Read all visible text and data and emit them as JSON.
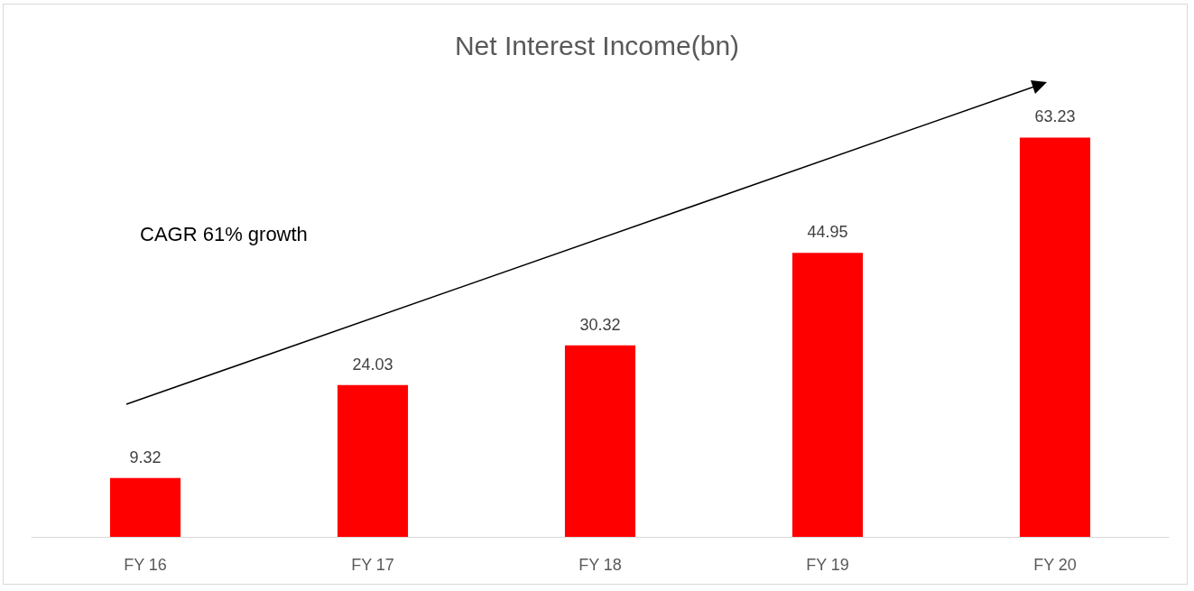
{
  "chart_data": {
    "type": "bar",
    "title": "Net Interest Income(bn)",
    "categories": [
      "FY 16",
      "FY 17",
      "FY 18",
      "FY 19",
      "FY 20"
    ],
    "values": [
      9.32,
      24.03,
      30.32,
      44.95,
      63.23
    ],
    "color": "#ff0000",
    "data_labels": true,
    "grid": false,
    "annotations": [
      "CAGR 61% growth"
    ]
  }
}
